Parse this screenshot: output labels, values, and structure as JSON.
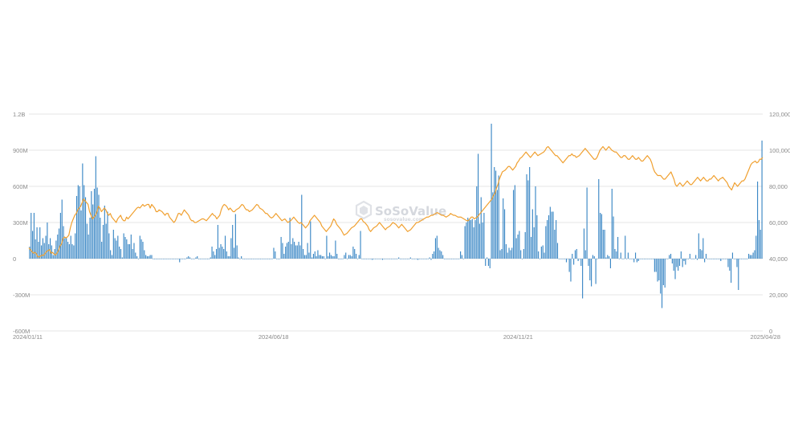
{
  "chart_data": {
    "type": "bar+line",
    "title": "",
    "xlabel": "",
    "ylabel": "",
    "grid": true,
    "legend": "none",
    "x_tick_labels": [
      "2024/01/11",
      "2024/06/18",
      "2024/11/21",
      "2025/04/28"
    ],
    "left_axis": {
      "range_millions": [
        -600,
        1200
      ],
      "tick_labels": [
        "1.2B",
        "900M",
        "600M",
        "300M",
        "0",
        "-300M",
        "-600M"
      ],
      "tick_values": [
        1200,
        900,
        600,
        300,
        0,
        -300,
        -600
      ]
    },
    "right_axis": {
      "range": [
        0,
        120000
      ],
      "tick_labels": [
        "120,000",
        "100,000",
        "80,000",
        "60,000",
        "40,000",
        "20,000",
        "0"
      ],
      "tick_values": [
        120000,
        100000,
        80000,
        60000,
        40000,
        20000,
        0
      ]
    },
    "series": [
      {
        "type": "bar",
        "axis": "left",
        "unit": "millions",
        "color": "#3a87c5",
        "values": [
          100,
          380,
          230,
          380,
          160,
          260,
          140,
          260,
          110,
          170,
          130,
          190,
          300,
          120,
          170,
          110,
          30,
          80,
          150,
          200,
          250,
          380,
          490,
          270,
          170,
          170,
          140,
          120,
          190,
          120,
          110,
          210,
          520,
          610,
          600,
          400,
          790,
          610,
          510,
          290,
          200,
          340,
          560,
          450,
          580,
          850,
          590,
          530,
          340,
          140,
          280,
          440,
          290,
          390,
          210,
          70,
          30,
          240,
          170,
          150,
          190,
          100,
          80,
          10,
          210,
          180,
          160,
          120,
          120,
          200,
          80,
          130,
          50,
          20,
          0,
          190,
          160,
          140,
          70,
          30,
          20,
          20,
          30,
          30,
          0,
          0,
          0,
          0,
          0,
          0,
          0,
          0,
          0,
          0,
          0,
          0,
          0,
          0,
          0,
          0,
          0,
          0,
          -30,
          0,
          0,
          0,
          0,
          10,
          20,
          10,
          0,
          0,
          0,
          10,
          20,
          0,
          0,
          0,
          0,
          0,
          0,
          0,
          0,
          10,
          100,
          60,
          30,
          80,
          280,
          90,
          120,
          100,
          80,
          190,
          60,
          20,
          20,
          170,
          280,
          90,
          370,
          110,
          10,
          0,
          20,
          0,
          0,
          0,
          0,
          0,
          0,
          0,
          0,
          0,
          0,
          0,
          0,
          0,
          0,
          0,
          0,
          0,
          0,
          0,
          0,
          0,
          90,
          60,
          0,
          0,
          0,
          180,
          130,
          40,
          100,
          130,
          140,
          340,
          120,
          170,
          140,
          110,
          110,
          140,
          110,
          530,
          80,
          30,
          30,
          130,
          50,
          310,
          10,
          40,
          60,
          20,
          70,
          30,
          30,
          20,
          20,
          0,
          190,
          20,
          50,
          30,
          20,
          20,
          150,
          40,
          0,
          0,
          0,
          0,
          30,
          50,
          0,
          30,
          30,
          20,
          100,
          80,
          40,
          0,
          30,
          230,
          0,
          0,
          0,
          0,
          0,
          0,
          0,
          -10,
          0,
          0,
          0,
          0,
          0,
          0,
          -10,
          0,
          0,
          0,
          0,
          0,
          0,
          0,
          0,
          0,
          0,
          10,
          0,
          0,
          0,
          0,
          0,
          0,
          0,
          10,
          0,
          0,
          0,
          0,
          -10,
          0,
          0,
          0,
          0,
          0,
          0,
          0,
          10,
          -10,
          40,
          60,
          170,
          190,
          90,
          70,
          60,
          30,
          0,
          0,
          0,
          0,
          0,
          0,
          0,
          0,
          0,
          0,
          0,
          60,
          30,
          0,
          270,
          300,
          340,
          330,
          320,
          330,
          260,
          320,
          600,
          870,
          290,
          510,
          300,
          380,
          -60,
          10,
          -60,
          -80,
          1120,
          550,
          760,
          730,
          570,
          690,
          70,
          80,
          500,
          410,
          120,
          50,
          90,
          70,
          90,
          570,
          610,
          170,
          200,
          230,
          70,
          0,
          80,
          220,
          700,
          650,
          760,
          180,
          410,
          260,
          600,
          360,
          60,
          0,
          100,
          110,
          50,
          270,
          320,
          360,
          430,
          390,
          390,
          240,
          320,
          130,
          0,
          0,
          0,
          0,
          0,
          -30,
          0,
          -110,
          -190,
          40,
          -50,
          70,
          80,
          -20,
          0,
          -60,
          -330,
          250,
          70,
          590,
          -60,
          -180,
          -230,
          30,
          20,
          -210,
          0,
          660,
          380,
          370,
          240,
          240,
          10,
          30,
          20,
          -80,
          580,
          350,
          80,
          60,
          180,
          0,
          50,
          0,
          0,
          190,
          0,
          50,
          0,
          0,
          0,
          -30,
          50,
          -30,
          -20,
          0,
          0,
          0,
          0,
          0,
          0,
          0,
          0,
          0,
          0,
          -110,
          -110,
          -190,
          -180,
          -290,
          -410,
          -220,
          -240,
          0,
          0,
          30,
          40,
          -40,
          -100,
          -170,
          -70,
          -100,
          -60,
          60,
          -70,
          -20,
          -50,
          0,
          0,
          40,
          0,
          0,
          0,
          30,
          -10,
          210,
          80,
          70,
          170,
          -30,
          40,
          0,
          0,
          0,
          0,
          0,
          0,
          0,
          0,
          0,
          -20,
          0,
          0,
          0,
          0,
          -70,
          -100,
          -200,
          50,
          0,
          0,
          -70,
          -260,
          0,
          0,
          0,
          0,
          0,
          0,
          40,
          30,
          30,
          50,
          70,
          190,
          640,
          320,
          240,
          980
        ]
      },
      {
        "type": "line",
        "axis": "right",
        "color": "#f0a030",
        "values": [
          46000,
          45000,
          44000,
          43000,
          43500,
          42800,
          41000,
          41000,
          41500,
          42000,
          41800,
          43000,
          44000,
          44500,
          45000,
          43000,
          43500,
          42500,
          42000,
          43000,
          44500,
          47000,
          48000,
          51000,
          52000,
          51500,
          52000,
          53000,
          57000,
          60000,
          62000,
          64000,
          65000,
          67000,
          68000,
          69000,
          71000,
          73000,
          72000,
          71000,
          70000,
          66000,
          64000,
          62000,
          63000,
          64000,
          66000,
          69000,
          68000,
          66000,
          67000,
          68000,
          67000,
          65000,
          64000,
          65000,
          63000,
          62000,
          61000,
          60000,
          62000,
          63000,
          64000,
          62000,
          61000,
          61000,
          63000,
          62000,
          63000,
          64000,
          65000,
          66000,
          67000,
          68000,
          68500,
          68000,
          69000,
          70000,
          69000,
          69500,
          70000,
          70000,
          68000,
          70000,
          69000,
          68000,
          66000,
          66000,
          67000,
          66500,
          66000,
          65000,
          64000,
          65000,
          65000,
          63000,
          62000,
          61000,
          60000,
          61000,
          63000,
          65000,
          65000,
          64000,
          65500,
          67000,
          66000,
          65000,
          64000,
          62000,
          61000,
          61000,
          60000,
          60000,
          60500,
          61000,
          61500,
          62000,
          62000,
          61500,
          61000,
          62000,
          63000,
          64000,
          65000,
          64000,
          63500,
          62000,
          63000,
          64000,
          67000,
          69000,
          70000,
          69500,
          68500,
          67000,
          68000,
          67000,
          66000,
          66000,
          67000,
          67500,
          68000,
          69000,
          70000,
          69500,
          68000,
          67000,
          67000,
          66000,
          66500,
          67000,
          68000,
          69000,
          70000,
          69500,
          68000,
          67500,
          67000,
          66000,
          65000,
          65000,
          64000,
          63000,
          62500,
          63000,
          64000,
          65000,
          64000,
          63000,
          62000,
          61000,
          61500,
          62000,
          61000,
          60000,
          60500,
          61000,
          62000,
          63000,
          62000,
          61000,
          60000,
          59500,
          60000,
          59000,
          58000,
          57000,
          58000,
          59000,
          61000,
          62000,
          63000,
          64000,
          63000,
          62000,
          61000,
          60000,
          58000,
          57000,
          56000,
          55000,
          56000,
          57000,
          58000,
          60000,
          62000,
          61000,
          59000,
          58000,
          57000,
          56000,
          54500,
          53000,
          53500,
          54000,
          55000,
          56000,
          57000,
          57500,
          58000,
          59000,
          60000,
          61000,
          62000,
          62000,
          60500,
          60000,
          59000,
          58000,
          56000,
          55000,
          56000,
          57000,
          57500,
          58000,
          59000,
          60000,
          59000,
          58000,
          57000,
          56000,
          57000,
          57500,
          58000,
          59000,
          60000,
          59500,
          59000,
          58000,
          57000,
          58000,
          59000,
          58000,
          57000,
          56000,
          55000,
          55500,
          56000,
          57000,
          58000,
          59000,
          60000,
          60000,
          60500,
          61000,
          61500,
          62000,
          62500,
          63000,
          63000,
          63500,
          64000,
          64000,
          64500,
          65000,
          65500,
          65000,
          64500,
          64000,
          64000,
          63500,
          63000,
          63500,
          64000,
          65000,
          64500,
          64000,
          64000,
          63500,
          63000,
          63000,
          63000,
          62500,
          62000,
          61500,
          61000,
          61000,
          62000,
          63000,
          63000,
          62000,
          62500,
          63000,
          64000,
          65000,
          66000,
          67000,
          68000,
          69000,
          70000,
          71000,
          72000,
          73000,
          75000,
          76000,
          79000,
          81000,
          84000,
          86000,
          88000,
          88500,
          89000,
          90000,
          91000,
          91000,
          90000,
          89000,
          90000,
          91000,
          93000,
          94000,
          95500,
          96000,
          97000,
          98000,
          99000,
          98000,
          97000,
          96000,
          97000,
          98000,
          99000,
          98000,
          97000,
          97500,
          98000,
          98500,
          99000,
          100000,
          101500,
          102000,
          101000,
          100000,
          99000,
          98000,
          97000,
          97000,
          96000,
          95000,
          94000,
          93000,
          94000,
          95000,
          96000,
          97000,
          97000,
          98000,
          97000,
          97000,
          96000,
          96500,
          97000,
          98000,
          99000,
          100000,
          101000,
          100000,
          99000,
          98000,
          97000,
          96000,
          95000,
          95000,
          96000,
          98000,
          100000,
          101000,
          102000,
          101000,
          100000,
          101000,
          102000,
          101000,
          100000,
          99500,
          99000,
          99000,
          98000,
          97000,
          96000,
          96000,
          97000,
          97000,
          96000,
          95000,
          95000,
          96000,
          97000,
          96000,
          95000,
          95000,
          96000,
          95000,
          94000,
          94000,
          95000,
          96000,
          97000,
          96000,
          95000,
          93000,
          90000,
          88000,
          87000,
          86000,
          86000,
          86000,
          85000,
          84000,
          84000,
          85000,
          86000,
          87000,
          88000,
          86000,
          84000,
          81000,
          80000,
          81000,
          82000,
          81000,
          80000,
          81000,
          82000,
          83000,
          82000,
          81000,
          81000,
          82000,
          83000,
          84000,
          85000,
          84000,
          83000,
          84000,
          85000,
          84000,
          83000,
          83000,
          84000,
          84000,
          85000,
          86000,
          85000,
          84000,
          83000,
          84000,
          84500,
          85000,
          84000,
          83000,
          82000,
          80000,
          79000,
          78000,
          80000,
          82000,
          81000,
          80000,
          81000,
          82000,
          83000,
          83000,
          84000,
          86000,
          88000,
          90000,
          92000,
          93000,
          93500,
          94000,
          93000,
          93500,
          95000,
          95000,
          96000
        ]
      }
    ]
  },
  "watermark": {
    "brand": "SoSoValue",
    "url": "sosovalue.com"
  }
}
